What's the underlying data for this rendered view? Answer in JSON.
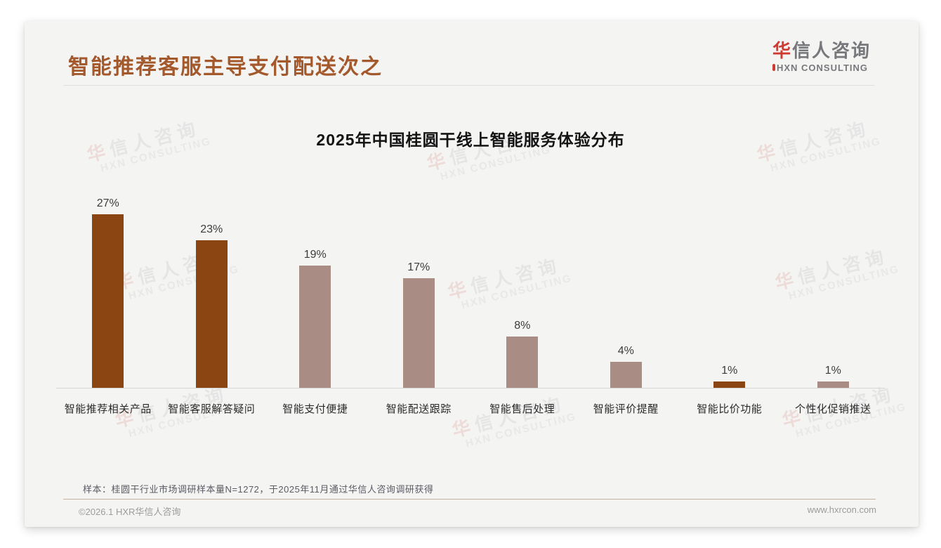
{
  "page": {
    "slide_title": "智能推荐客服主导支付配送次之",
    "sample_note": "样本：桂圆干行业市场调研样本量N=1272，于2025年11月通过华信人咨询调研获得",
    "footer_left": "©2026.1 HXR华信人咨询",
    "footer_right": "www.hxrcon.com"
  },
  "logo": {
    "accent_char": "华",
    "name_rest": "信人咨询",
    "subtitle": "HXN CONSULTING"
  },
  "watermark": {
    "line1_accent": "华",
    "line1_rest": "信人咨询",
    "line2": "HXN CONSULTING"
  },
  "colors": {
    "title_brown": "#A4592C",
    "bar_dark": "#8B4513",
    "bar_light": "#A98D85",
    "logo_red": "#CF3A32",
    "logo_gray": "#77787B",
    "card_background": "#F4F4F3",
    "axis_line": "#D6D6D6",
    "footer_divider": "#C9B0A1",
    "footer_text": "#9C9C9C"
  },
  "chart_data": {
    "type": "bar",
    "title": "2025年中国桂圆干线上智能服务体验分布",
    "categories": [
      "智能推荐相关产品",
      "智能客服解答疑问",
      "智能支付便捷",
      "智能配送跟踪",
      "智能售后处理",
      "智能评价提醒",
      "智能比价功能",
      "个性化促销推送"
    ],
    "values": [
      27,
      23,
      19,
      17,
      8,
      4,
      1,
      1
    ],
    "value_labels": [
      "27%",
      "23%",
      "19%",
      "17%",
      "8%",
      "4%",
      "1%",
      "1%"
    ],
    "bar_colors": [
      "#8B4513",
      "#8B4513",
      "#A98D85",
      "#A98D85",
      "#A98D85",
      "#A98D85",
      "#8B4513",
      "#A98D85"
    ],
    "ylim": [
      0,
      30
    ],
    "xlabel": "",
    "ylabel": "",
    "grid": false,
    "legend": false,
    "value_label_position": "above-bar"
  }
}
